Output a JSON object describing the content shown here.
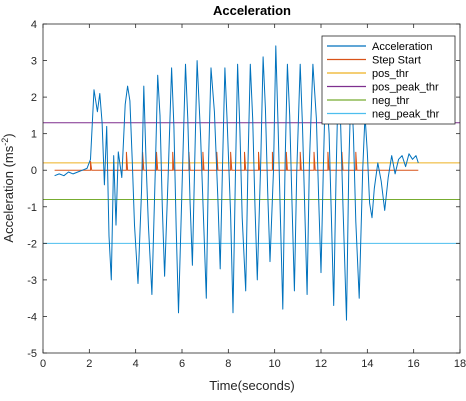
{
  "colors": {
    "acceleration": "#0072BD",
    "step_start": "#D95319",
    "pos_thr": "#EDB120",
    "pos_peak_thr": "#7E2F8E",
    "neg_thr": "#77AC30",
    "neg_peak_thr": "#4DBEEE",
    "axis": "#262626"
  },
  "chart_data": {
    "type": "line",
    "title": "Acceleration",
    "xlabel": "Time(seconds)",
    "ylabel_main": "Acceleration (ms",
    "ylabel_exp": "-2",
    "ylabel_close": ")",
    "xlim": [
      0,
      18
    ],
    "ylim": [
      -5,
      4
    ],
    "xticks": [
      0,
      2,
      4,
      6,
      8,
      10,
      12,
      14,
      16,
      18
    ],
    "yticks": [
      -5,
      -4,
      -3,
      -2,
      -1,
      0,
      1,
      2,
      3,
      4
    ],
    "legend_position": "top-right",
    "legend": [
      "Acceleration",
      "Step Start",
      "pos_thr",
      "pos_peak_thr",
      "neg_thr",
      "neg_peak_thr"
    ],
    "thresholds": [
      {
        "name": "pos_thr",
        "y": 0.2
      },
      {
        "name": "pos_peak_thr",
        "y": 1.3
      },
      {
        "name": "neg_thr",
        "y": -0.8
      },
      {
        "name": "neg_peak_thr",
        "y": -2.0
      }
    ],
    "step_start": [
      {
        "x": [
          0.5,
          2.05,
          2.05,
          2.1,
          3.6,
          3.6,
          3.65,
          4.3,
          4.3,
          4.35,
          4.9,
          4.9,
          4.95,
          5.6,
          5.6,
          5.65,
          6.3,
          6.3,
          6.35,
          6.9,
          6.9,
          6.95,
          7.5,
          7.5,
          7.55,
          8.1,
          8.1,
          8.15,
          8.7,
          8.7,
          8.75,
          9.3,
          9.3,
          9.35,
          9.9,
          9.9,
          9.95,
          10.5,
          10.5,
          10.55,
          11.1,
          11.1,
          11.15,
          11.7,
          11.7,
          11.75,
          12.3,
          12.3,
          12.35,
          12.9,
          12.9,
          12.95,
          13.5,
          13.5,
          13.55,
          16.2
        ],
        "y": [
          0,
          0,
          0.25,
          0,
          0,
          0.5,
          0,
          0,
          0.5,
          0,
          0,
          0.5,
          0,
          0,
          0.5,
          0,
          0,
          0.5,
          0,
          0,
          0.5,
          0,
          0,
          0.5,
          0,
          0,
          0.5,
          0,
          0,
          0.5,
          0,
          0,
          0.5,
          0,
          0,
          0.5,
          0,
          0,
          0.5,
          0,
          0,
          0.5,
          0,
          0,
          0.5,
          0,
          0,
          0.5,
          0,
          0,
          0.5,
          0,
          0,
          0.5,
          0,
          0
        ]
      }
    ],
    "series": [
      {
        "x": [
          0.5,
          0.7,
          0.9,
          1.1,
          1.3,
          1.5,
          1.7,
          1.9,
          2.05,
          2.2,
          2.35,
          2.45,
          2.55,
          2.65,
          2.75,
          2.85,
          2.95,
          3.05,
          3.15,
          3.25,
          3.4,
          3.55,
          3.65,
          3.75,
          3.85,
          3.95,
          4.1,
          4.25,
          4.35,
          4.45,
          4.55,
          4.7,
          4.85,
          4.95,
          5.05,
          5.15,
          5.25,
          5.4,
          5.55,
          5.65,
          5.75,
          5.85,
          6.0,
          6.15,
          6.25,
          6.35,
          6.45,
          6.55,
          6.65,
          6.8,
          6.95,
          7.05,
          7.15,
          7.25,
          7.4,
          7.55,
          7.65,
          7.75,
          7.85,
          7.95,
          8.1,
          8.2,
          8.3,
          8.4,
          8.5,
          8.6,
          8.75,
          8.85,
          8.95,
          9.05,
          9.15,
          9.25,
          9.4,
          9.5,
          9.6,
          9.7,
          9.8,
          9.95,
          10.05,
          10.15,
          10.25,
          10.35,
          10.45,
          10.55,
          10.65,
          10.75,
          10.85,
          10.95,
          11.1,
          11.2,
          11.3,
          11.4,
          11.5,
          11.65,
          11.8,
          11.9,
          12.0,
          12.1,
          12.2,
          12.35,
          12.45,
          12.55,
          12.65,
          12.75,
          12.85,
          12.95,
          13.1,
          13.2,
          13.3,
          13.4,
          13.5,
          13.65,
          13.8,
          13.9,
          14.0,
          14.1,
          14.2,
          14.3,
          14.45,
          14.6,
          14.75,
          14.9,
          15.05,
          15.2,
          15.35,
          15.5,
          15.65,
          15.8,
          15.95,
          16.1,
          16.2
        ],
        "y": [
          -0.15,
          -0.1,
          -0.15,
          -0.05,
          -0.1,
          -0.05,
          0.0,
          0.05,
          0.3,
          2.2,
          1.6,
          2.1,
          1.3,
          -0.4,
          1.2,
          -1.8,
          -3.0,
          0.4,
          -1.5,
          0.5,
          -0.2,
          1.8,
          2.3,
          1.9,
          0.3,
          -1.5,
          -3.1,
          -0.6,
          2.3,
          0.2,
          -1.5,
          -3.4,
          0.1,
          2.6,
          1.5,
          -1.0,
          -2.9,
          -0.2,
          2.8,
          1.2,
          -1.6,
          -3.9,
          -0.5,
          2.9,
          1.4,
          -0.9,
          -2.6,
          0.2,
          3.0,
          1.0,
          -1.7,
          -3.5,
          0.3,
          2.8,
          1.6,
          -0.8,
          -2.7,
          0.1,
          2.8,
          1.3,
          -1.2,
          -3.9,
          -0.3,
          2.9,
          1.1,
          -1.3,
          -3.3,
          0.2,
          2.9,
          1.4,
          -1.0,
          -3.0,
          0.3,
          3.1,
          1.7,
          -0.6,
          -2.5,
          0.0,
          3.4,
          1.2,
          -1.4,
          -3.8,
          0.2,
          2.9,
          1.5,
          -0.9,
          -3.3,
          -0.1,
          2.9,
          1.2,
          -1.1,
          -3.4,
          0.2,
          2.9,
          1.4,
          -0.8,
          -2.8,
          0.0,
          2.5,
          1.0,
          -1.3,
          -3.7,
          -0.1,
          2.6,
          1.2,
          -1.0,
          -4.1,
          0.1,
          2.4,
          1.0,
          -1.4,
          -3.5,
          0.0,
          1.5,
          0.5,
          -0.9,
          -1.3,
          -0.5,
          0.2,
          -0.3,
          -1.1,
          -0.2,
          0.4,
          -0.1,
          0.3,
          0.4,
          0.1,
          0.45,
          0.3,
          0.4,
          0.2
        ]
      }
    ]
  }
}
